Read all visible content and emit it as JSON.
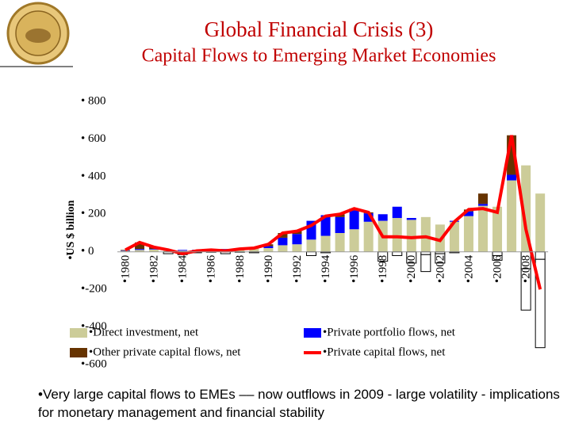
{
  "chart_data": {
    "type": "bar",
    "title": "Global Financial Crisis (3)",
    "subtitle": "Capital Flows to Emerging Market Economies",
    "ylabel": "•US $ billion",
    "footnote": "•Very large capital flows to EMEs –– now outflows in 2009 - large volatility - implications for monetary management and financial stability",
    "categories": [
      "•1980",
      null,
      "•1982",
      null,
      "•1984",
      null,
      "•1986",
      null,
      "•1988",
      null,
      "•1990",
      null,
      "•1992",
      null,
      "•1994",
      null,
      "•1996",
      null,
      "•1998",
      null,
      "•2000",
      null,
      "•2002",
      null,
      "•2004",
      null,
      "•2006",
      null,
      "•2008",
      null
    ],
    "ylim": [
      -600,
      800
    ],
    "yticks": [
      {
        "value": 800,
        "label": "• 800"
      },
      {
        "value": 600,
        "label": "• 600"
      },
      {
        "value": 400,
        "label": "• 400"
      },
      {
        "value": 200,
        "label": "• 200"
      },
      {
        "value": 0,
        "label": "• 0"
      },
      {
        "value": -200,
        "label": "•-200"
      },
      {
        "value": -400,
        "label": "•-400"
      },
      {
        "value": -600,
        "label": "•-600"
      }
    ],
    "negative_fill": "#ffffff",
    "series": [
      {
        "name": "•Direct investment, net",
        "color": "#cccc99",
        "values": [
          5,
          10,
          12,
          8,
          6,
          8,
          10,
          12,
          15,
          18,
          20,
          35,
          40,
          65,
          85,
          100,
          120,
          160,
          165,
          180,
          170,
          185,
          145,
          160,
          190,
          245,
          240,
          380,
          460,
          310
        ]
      },
      {
        "name": "•Private portfolio flows, net",
        "color": "#0000ff",
        "values": [
          2,
          5,
          3,
          2,
          4,
          3,
          2,
          3,
          2,
          5,
          10,
          40,
          55,
          100,
          110,
          85,
          100,
          45,
          35,
          60,
          10,
          -15,
          -10,
          5,
          25,
          10,
          -20,
          30,
          -90,
          -40
        ]
      },
      {
        "name": "•Other private capital flows, net",
        "color": "#663300",
        "values": [
          3,
          35,
          10,
          -10,
          -15,
          -5,
          -2,
          -10,
          -2,
          -5,
          10,
          25,
          15,
          -20,
          -5,
          15,
          10,
          5,
          -50,
          -20,
          -60,
          -90,
          -50,
          -5,
          10,
          55,
          -25,
          210,
          -220,
          -470
        ]
      },
      {
        "name": "•Private capital flows, net",
        "color": "#ff0000",
        "mark": "line",
        "values": [
          10,
          50,
          25,
          10,
          -10,
          5,
          10,
          5,
          15,
          20,
          40,
          100,
          110,
          140,
          190,
          200,
          230,
          210,
          80,
          80,
          75,
          80,
          60,
          160,
          225,
          230,
          210,
          620,
          120,
          -200
        ]
      }
    ]
  }
}
